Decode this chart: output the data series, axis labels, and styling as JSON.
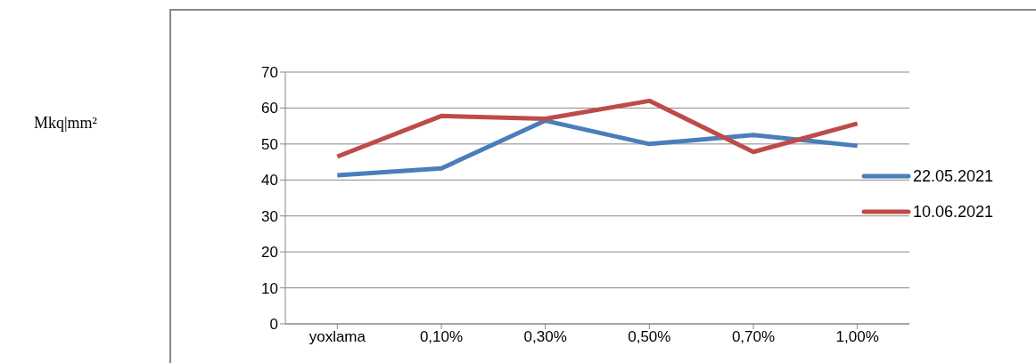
{
  "chart_data": {
    "type": "line",
    "annotations": [
      "Mkq|mm²"
    ],
    "categories": [
      "yoxlama",
      "0,10%",
      "0,30%",
      "0,50%",
      "0,70%",
      "1,00%"
    ],
    "series": [
      {
        "name": "22.05.2021",
        "color": "#4a7ebb",
        "values": [
          41.3,
          43.2,
          56.5,
          50,
          52.5,
          49.5
        ]
      },
      {
        "name": "10.06.2021",
        "color": "#be4b48",
        "values": [
          46.5,
          57.8,
          57,
          62,
          47.8,
          55.7
        ]
      }
    ],
    "ylim": [
      0,
      70
    ],
    "yticks": [
      0,
      10,
      20,
      30,
      40,
      50,
      60,
      70
    ],
    "grid": "y",
    "legend": "right",
    "marker": "none",
    "line_style": "solid"
  }
}
